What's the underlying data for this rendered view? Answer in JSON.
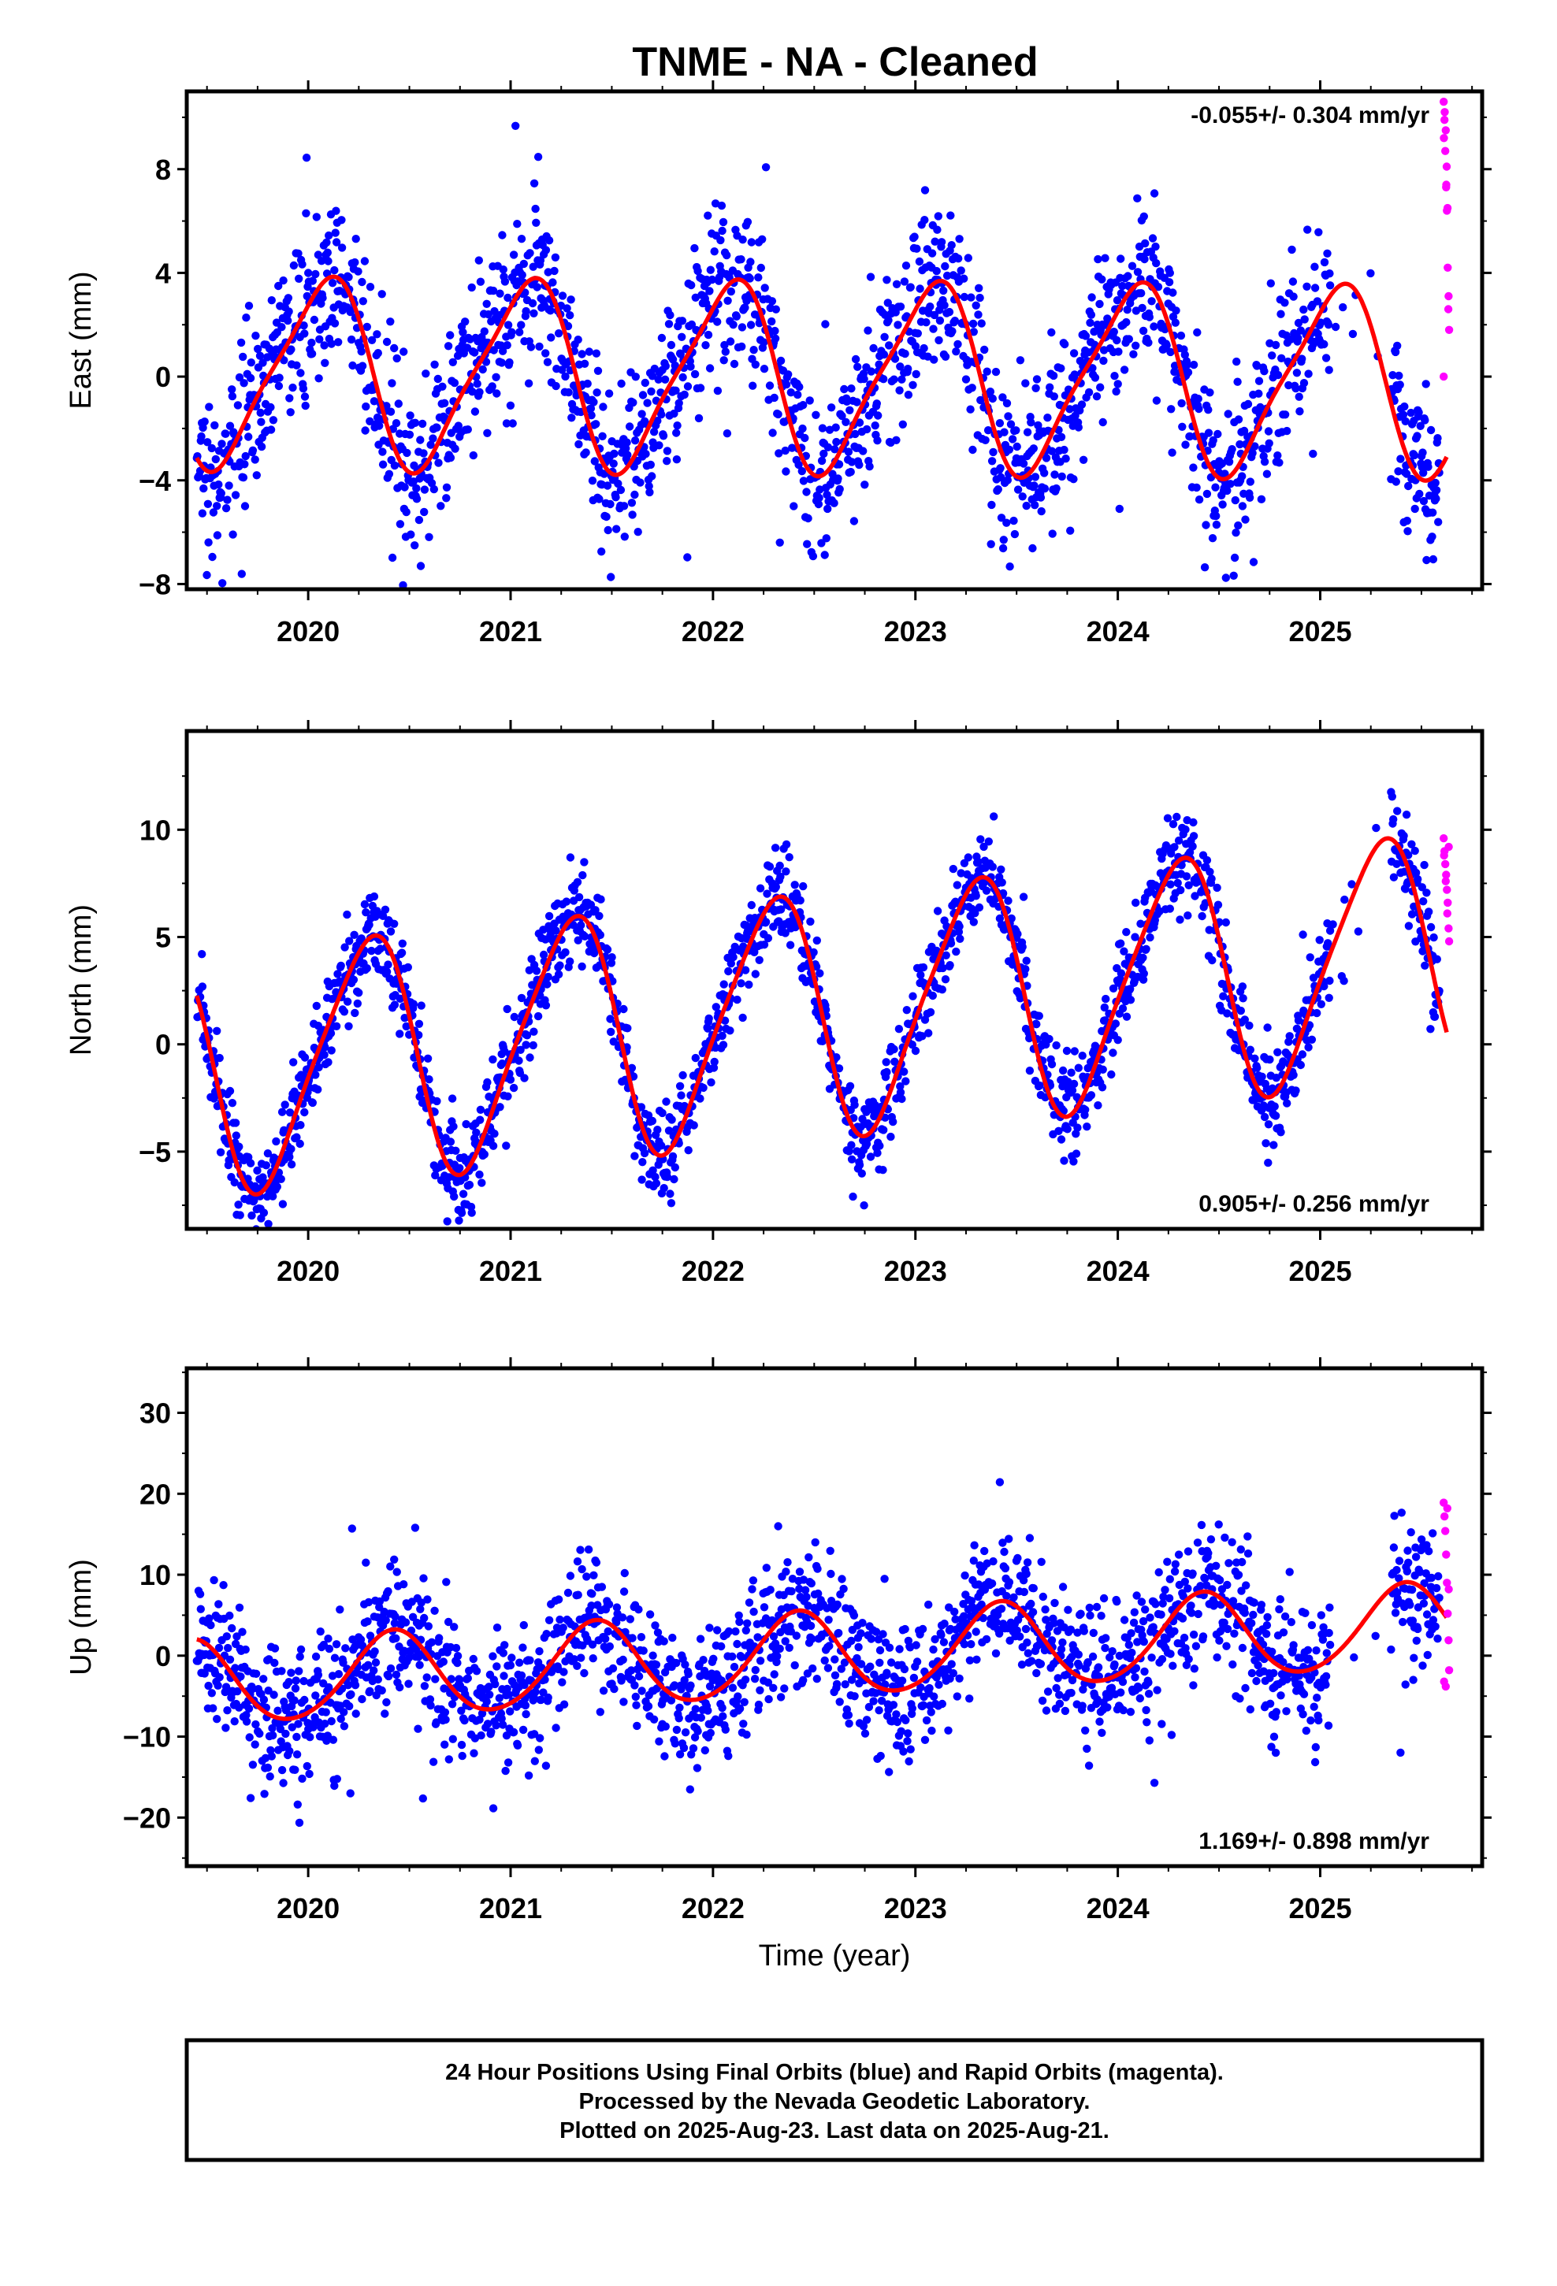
{
  "figure": {
    "title": "TNME  - NA - Cleaned",
    "footer": [
      "24 Hour Positions Using Final Orbits (blue) and Rapid Orbits (magenta).",
      "Processed by the Nevada Geodetic Laboratory.",
      "Plotted on 2025-Aug-23. Last data on 2025-Aug-21."
    ],
    "colors": {
      "final": "#0000ff",
      "rapid": "#ff00ff",
      "model": "#ff0000",
      "frame": "#000000"
    }
  },
  "chart_data": [
    {
      "type": "scatter",
      "component": "east",
      "ylabel": "East (mm)",
      "xlabel": "",
      "rate_text": "-0.055+/- 0.304 mm/yr",
      "xlim": [
        2019.4,
        2025.8
      ],
      "ylim": [
        -8.2,
        11
      ],
      "yticks": [
        8,
        4,
        0,
        -4,
        -8
      ],
      "ytick_labels": [
        "8",
        "4",
        "0",
        "−4",
        "−8"
      ],
      "xticks": [
        2020,
        2021,
        2022,
        2023,
        2024,
        2025
      ],
      "xtick_labels": [
        "2020",
        "2021",
        "2022",
        "2023",
        "2024",
        "2025"
      ],
      "model": {
        "offset": 0.0,
        "a1": 3.2,
        "b1": 1.5,
        "a2": -0.6,
        "b2": 0.4,
        "trend": -0.055,
        "t0": 2022.5
      },
      "noise": 1.6,
      "data_start": 2019.45,
      "data_end": 2025.59,
      "gaps": [
        [
          2025.05,
          2025.35
        ]
      ],
      "rapid": {
        "x": [
          2025.61,
          2025.614,
          2025.618,
          2025.622,
          2025.626,
          2025.63,
          2025.634,
          2025.637,
          2025.61,
          2025.615,
          2025.62,
          2025.625,
          2025.629,
          2025.633,
          2025.611,
          2025.623
        ],
        "y": [
          10.6,
          9.9,
          8.7,
          7.3,
          6.4,
          4.2,
          3.1,
          1.8,
          0.0,
          10.2,
          9.5,
          8.1,
          6.5,
          2.6,
          9.2,
          7.4
        ]
      }
    },
    {
      "type": "scatter",
      "component": "north",
      "ylabel": "North (mm)",
      "xlabel": "",
      "rate_text": "0.905+/- 0.256 mm/yr",
      "xlim": [
        2019.4,
        2025.8
      ],
      "ylim": [
        -8.6,
        14.6
      ],
      "yticks": [
        10,
        5,
        0,
        -5
      ],
      "ytick_labels": [
        "10",
        "5",
        "0",
        "−5"
      ],
      "xticks": [
        2020,
        2021,
        2022,
        2023,
        2024,
        2025
      ],
      "xtick_labels": [
        "2020",
        "2021",
        "2022",
        "2023",
        "2024",
        "2025"
      ],
      "model": {
        "offset": 1.4,
        "a1": -1.2,
        "b1": 5.4,
        "a2": 0.5,
        "b2": -0.7,
        "trend": 0.905,
        "t0": 2022.5
      },
      "noise": 1.1,
      "data_start": 2019.45,
      "data_end": 2025.59,
      "gaps": [
        [
          2025.05,
          2025.35
        ]
      ],
      "rapid": {
        "x": [
          2025.61,
          2025.614,
          2025.618,
          2025.622,
          2025.626,
          2025.63,
          2025.634,
          2025.637,
          2025.612,
          2025.62,
          2025.628,
          2025.635
        ],
        "y": [
          9.6,
          9.0,
          8.4,
          7.9,
          7.2,
          6.6,
          5.4,
          4.8,
          8.8,
          7.6,
          6.1,
          9.2
        ]
      }
    },
    {
      "type": "scatter",
      "component": "up",
      "ylabel": "Up (mm)",
      "xlabel": "Time (year)",
      "rate_text": "1.169+/- 0.898 mm/yr",
      "xlim": [
        2019.4,
        2025.8
      ],
      "ylim": [
        -26,
        35.5
      ],
      "yticks": [
        30,
        20,
        10,
        0,
        -10,
        -20
      ],
      "ytick_labels": [
        "30",
        "20",
        "10",
        "0",
        "−10",
        "−20"
      ],
      "xticks": [
        2020,
        2021,
        2022,
        2023,
        2024,
        2025
      ],
      "xtick_labels": [
        "2020",
        "2021",
        "2022",
        "2023",
        "2024",
        "2025"
      ],
      "model": {
        "offset": 0.0,
        "a1": -4.5,
        "b1": 2.6,
        "a2": 0.4,
        "b2": -0.3,
        "trend": 1.169,
        "t0": 2022.5
      },
      "noise": 4.3,
      "data_start": 2019.45,
      "data_end": 2025.59,
      "gaps": [
        [
          2025.05,
          2025.35
        ]
      ],
      "rapid": {
        "x": [
          2025.61,
          2025.614,
          2025.618,
          2025.622,
          2025.626,
          2025.63,
          2025.634,
          2025.637,
          2025.612,
          2025.62,
          2025.628,
          2025.635
        ],
        "y": [
          18.9,
          17.2,
          15.4,
          12.5,
          9.0,
          5.2,
          1.9,
          -1.8,
          -3.2,
          -3.8,
          18.2,
          8.2
        ]
      }
    }
  ]
}
